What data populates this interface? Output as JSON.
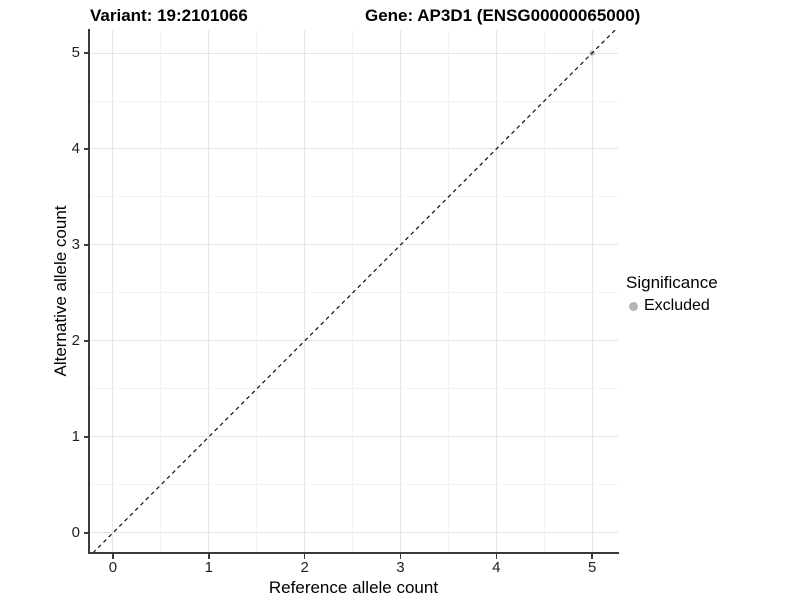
{
  "figure": {
    "title_left": "Variant: 19:2101066",
    "title_right": "Gene: AP3D1 (ENSG00000065000)"
  },
  "chart_data": {
    "type": "scatter",
    "title": "Variant: 19:2101066 — Gene: AP3D1 (ENSG00000065000)",
    "xlabel": "Reference allele count",
    "ylabel": "Alternative allele count",
    "xlim": [
      -0.25,
      5.27
    ],
    "ylim": [
      -0.21,
      5.24
    ],
    "xticks": [
      0,
      1,
      2,
      3,
      4,
      5
    ],
    "yticks": [
      0,
      1,
      2,
      3,
      4,
      5
    ],
    "minor_step": 0.5,
    "grid": "major-and-minor",
    "series": [
      {
        "name": "Excluded",
        "color": "#bcbcbc",
        "points": [
          {
            "x": 5,
            "y": 5
          }
        ]
      }
    ],
    "abline": {
      "slope": 1,
      "intercept": 0,
      "style": "dashed",
      "color": "#111111"
    },
    "legend": {
      "position": "right",
      "title": "Significance",
      "items": [
        {
          "label": "Excluded",
          "color": "#b5b5b5"
        }
      ]
    },
    "style": {
      "grid_major": "#e6e6e6",
      "grid_minor": "#f2f2f2",
      "axis_line": "#3a3a3a",
      "tick_label_color": "#1f1f1f",
      "background": "#ffffff"
    }
  }
}
